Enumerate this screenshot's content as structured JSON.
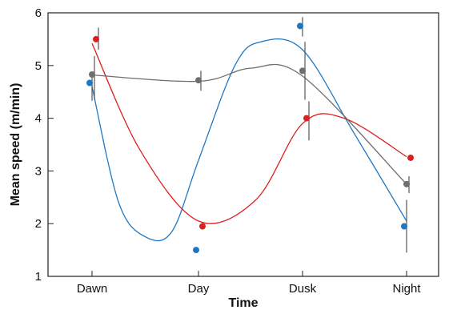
{
  "chart_data": {
    "type": "line",
    "title": "",
    "xlabel": "Time",
    "ylabel": "Mean speed (m/min)",
    "categories": [
      "Dawn",
      "Day",
      "Dusk",
      "Night"
    ],
    "ylim": [
      1,
      6
    ],
    "yticks": [
      "1",
      "2",
      "3",
      "4",
      "5",
      "6"
    ],
    "grid": false,
    "legend": "none",
    "series": [
      {
        "color": "#1f77c4",
        "points": [
          {
            "value": 4.67,
            "err": [
              4.33,
              4.82
            ]
          },
          {
            "value": 1.5,
            "err": null
          },
          {
            "value": 5.75,
            "err": [
              5.55,
              5.92
            ]
          },
          {
            "value": 1.95,
            "err": [
              1.45,
              2.45
            ]
          }
        ],
        "curve": [
          [
            0,
            4.6
          ],
          [
            0.25,
            2.4
          ],
          [
            0.5,
            1.75
          ],
          [
            0.75,
            1.85
          ],
          [
            1,
            3.2
          ],
          [
            1.35,
            5.0
          ],
          [
            1.6,
            5.45
          ],
          [
            2,
            5.3
          ],
          [
            2.5,
            3.7
          ],
          [
            3,
            2.05
          ]
        ]
      },
      {
        "color": "#dd1f1f",
        "points": [
          {
            "value": 5.5,
            "err": [
              5.3,
              5.72
            ]
          },
          {
            "value": 1.95,
            "err": null
          },
          {
            "value": 4.0,
            "err": [
              3.58,
              4.32
            ]
          },
          {
            "value": 3.25,
            "err": null
          }
        ],
        "curve": [
          [
            0,
            5.42
          ],
          [
            0.45,
            3.4
          ],
          [
            1,
            2.05
          ],
          [
            1.55,
            2.45
          ],
          [
            2,
            3.9
          ],
          [
            2.4,
            4.0
          ],
          [
            3,
            3.27
          ]
        ]
      },
      {
        "color": "#6e6e6e",
        "points": [
          {
            "value": 4.83,
            "err": [
              4.35,
              5.18
            ]
          },
          {
            "value": 4.72,
            "err": [
              4.52,
              4.9
            ]
          },
          {
            "value": 4.9,
            "err": [
              4.35,
              5.45
            ]
          },
          {
            "value": 2.75,
            "err": [
              2.58,
              2.9
            ]
          }
        ],
        "curve": [
          [
            0,
            4.82
          ],
          [
            1,
            4.7
          ],
          [
            1.5,
            4.95
          ],
          [
            2,
            4.8
          ],
          [
            3,
            2.75
          ]
        ]
      }
    ]
  }
}
